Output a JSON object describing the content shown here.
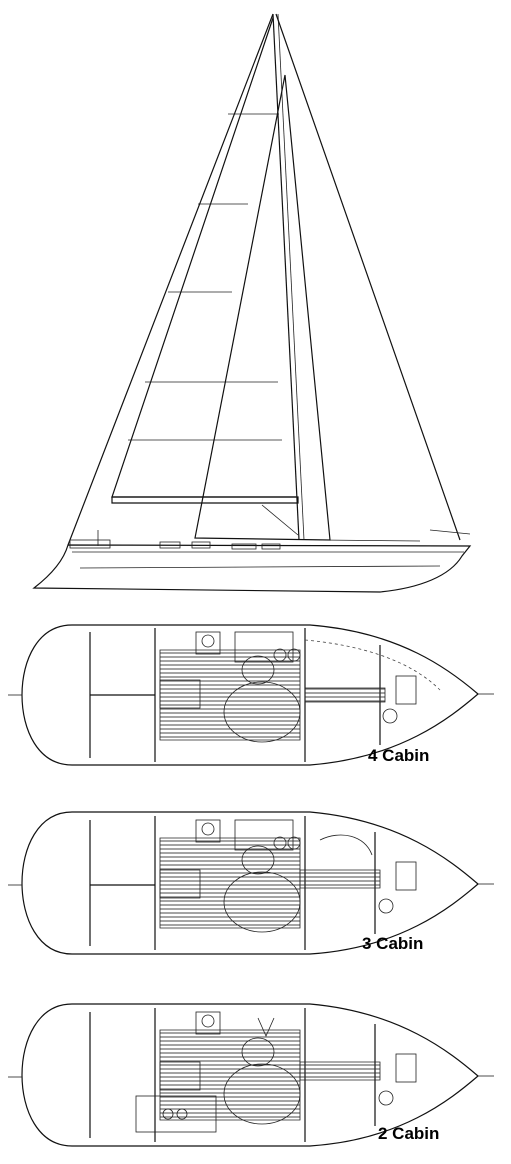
{
  "plans": [
    {
      "caption": "4 Cabin"
    },
    {
      "caption": "3 Cabin"
    },
    {
      "caption": "2 Cabin"
    }
  ]
}
